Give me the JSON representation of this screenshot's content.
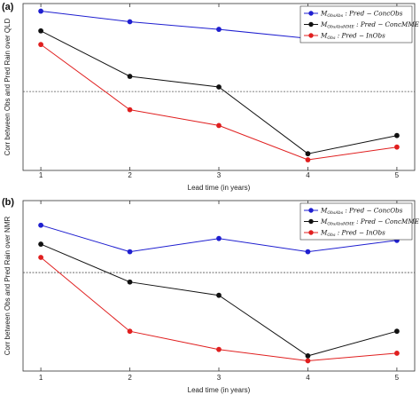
{
  "chart_data": [
    {
      "type": "line",
      "panel_label": "(a)",
      "title": "",
      "xlabel": "Lead time (in years)",
      "ylabel": "Corr between Obs and Pred Rain over QLD",
      "x": [
        1,
        2,
        3,
        4,
        5
      ],
      "xlim": [
        0.8,
        5.2
      ],
      "ylim": [
        0.0,
        0.55
      ],
      "grid": false,
      "legend_position": "top-right",
      "threshold": 0.26,
      "series": [
        {
          "name": "M_ObsAbs : Pred − ConcObs",
          "color": "#1f1fd0",
          "values": [
            0.525,
            0.49,
            0.465,
            0.435,
            0.465
          ]
        },
        {
          "name": "M_ObsAbsMME : Pred − ConcMME",
          "color": "#111111",
          "values": [
            0.46,
            0.31,
            0.275,
            0.055,
            0.115
          ]
        },
        {
          "name": "M_Obs : Pred − InObs",
          "color": "#e01f1f",
          "values": [
            0.415,
            0.2,
            0.148,
            0.035,
            0.077
          ]
        }
      ]
    },
    {
      "type": "line",
      "panel_label": "(b)",
      "title": "",
      "xlabel": "Lead time (in years)",
      "ylabel": "Corr between Obs and Pred Rain over NMR",
      "x": [
        1,
        2,
        3,
        4,
        5
      ],
      "xlim": [
        0.8,
        5.2
      ],
      "ylim": [
        0.0,
        0.45
      ],
      "grid": false,
      "legend_position": "top-right",
      "threshold": 0.26,
      "series": [
        {
          "name": "M_ObsAbs : Pred − ConcObs",
          "color": "#1f1fd0",
          "values": [
            0.385,
            0.315,
            0.35,
            0.315,
            0.345
          ]
        },
        {
          "name": "M_ObsAbsMME : Pred − ConcMME",
          "color": "#111111",
          "values": [
            0.335,
            0.235,
            0.2,
            0.04,
            0.105
          ]
        },
        {
          "name": "M_Obs : Pred − InObs",
          "color": "#e01f1f",
          "values": [
            0.3,
            0.105,
            0.057,
            0.027,
            0.047
          ]
        }
      ]
    }
  ]
}
